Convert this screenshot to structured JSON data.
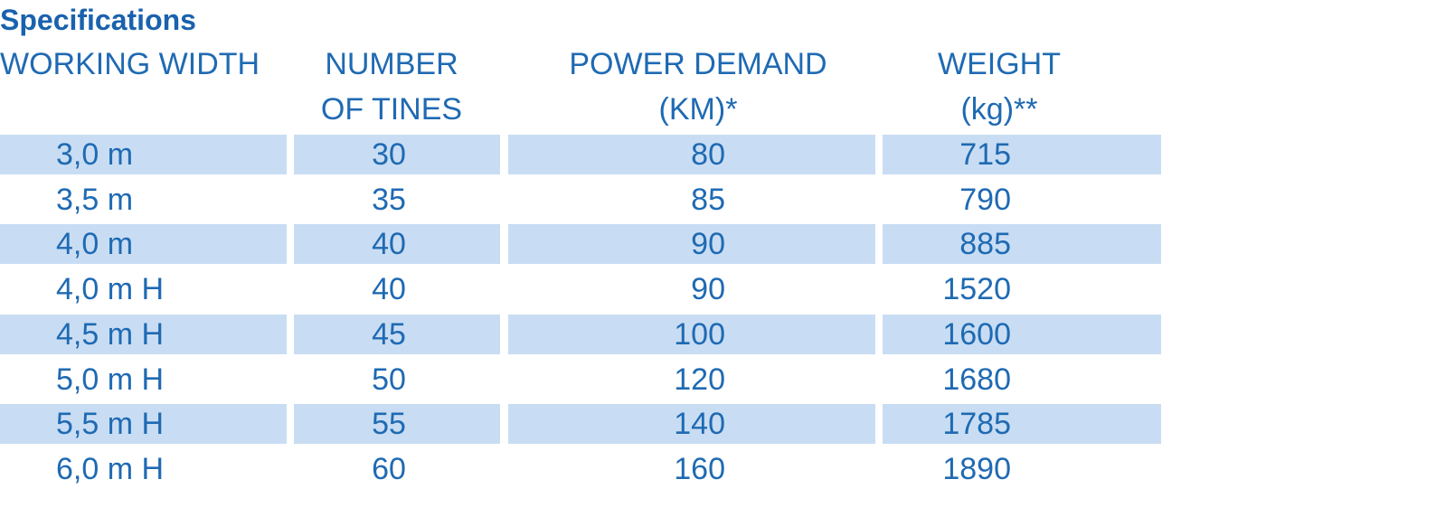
{
  "title": "Specifications",
  "table": {
    "header": [
      [
        "WORKING WIDTH"
      ],
      [
        "NUMBER",
        "OF TINES"
      ],
      [
        "POWER DEMAND",
        "(KM)*"
      ],
      [
        "WEIGHT",
        "(kg)**"
      ]
    ],
    "rows": [
      [
        "3,0 m",
        30,
        80,
        715
      ],
      [
        "3,5 m",
        35,
        85,
        790
      ],
      [
        "4,0 m",
        40,
        90,
        885
      ],
      [
        "4,0 m H",
        40,
        90,
        1520
      ],
      [
        "4,5 m H",
        45,
        100,
        1600
      ],
      [
        "5,0 m H",
        50,
        120,
        1680
      ],
      [
        "5,5 m H",
        55,
        140,
        1785
      ],
      [
        "6,0 m H",
        60,
        160,
        1890
      ]
    ]
  }
}
